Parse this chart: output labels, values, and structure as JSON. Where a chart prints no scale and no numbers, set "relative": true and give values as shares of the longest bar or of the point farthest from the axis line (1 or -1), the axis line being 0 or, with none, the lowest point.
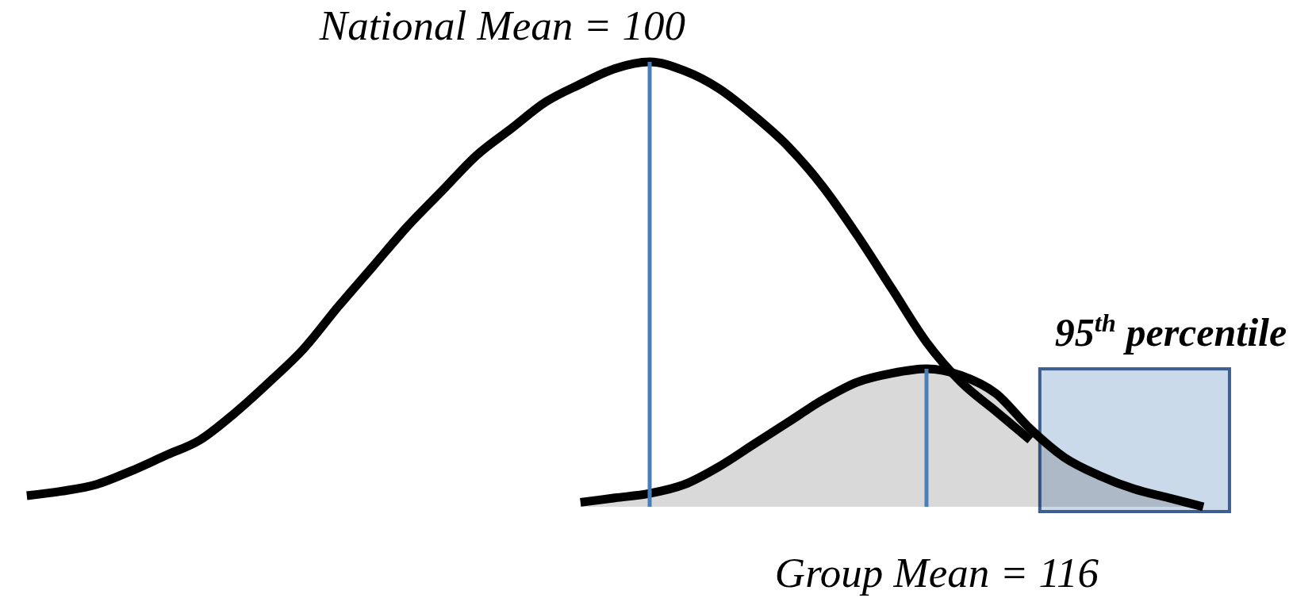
{
  "chart_data": {
    "type": "line",
    "relative": true,
    "categories": [
      null,
      null,
      null,
      null,
      null,
      null,
      null,
      null,
      null,
      null,
      null,
      null,
      null,
      null,
      null,
      null,
      null,
      null,
      null,
      null,
      null,
      null,
      null,
      null,
      null,
      null,
      null,
      null,
      null,
      null,
      null,
      null,
      null,
      null,
      null,
      null,
      null
    ],
    "series": [
      {
        "color": "#000000",
        "values": [
          0.025,
          0.035,
          0.05,
          0.08,
          0.115,
          0.15,
          0.21,
          0.28,
          0.355,
          0.45,
          0.54,
          0.63,
          0.71,
          0.79,
          0.85,
          0.91,
          0.95,
          0.985,
          1,
          0.98,
          0.94,
          0.88,
          0.81,
          0.72,
          0.61,
          0.49,
          0.37,
          0.28,
          0.215,
          0.15,
          null,
          null,
          null,
          null,
          null,
          null,
          null
        ]
      },
      {
        "type": "area",
        "color": "#d9d9d9",
        "values": [
          null,
          null,
          null,
          null,
          null,
          null,
          null,
          null,
          null,
          null,
          null,
          null,
          null,
          null,
          null,
          null,
          0.01,
          0.02,
          0.03,
          0.05,
          0.09,
          0.14,
          0.19,
          0.24,
          0.28,
          0.3,
          0.31,
          0.295,
          0.255,
          0.175,
          0.11,
          0.07,
          0.04,
          0.02,
          0,
          null,
          null
        ]
      }
    ],
    "annotations": [
      "National Mean = 100",
      "Group Mean = 116",
      "95$^{th}$ percentile"
    ]
  }
}
